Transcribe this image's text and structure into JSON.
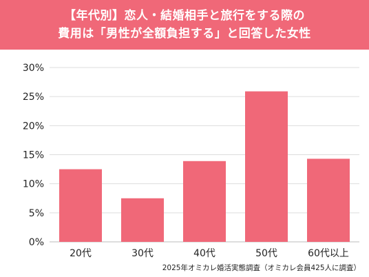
{
  "title": {
    "line1": "【年代別】恋人・結婚相手と旅行をする際の",
    "line2": "費用は「男性が全額負担する」と回答した女性"
  },
  "source_note": "2025年オミカレ婚活実態調査（オミカレ会員425人に調査）",
  "colors": {
    "header_bg": "#f06878",
    "bar": "#f06878",
    "grid": "#dddddd",
    "text": "#222222"
  },
  "chart_data": {
    "type": "bar",
    "title": "【年代別】恋人・結婚相手と旅行をする際の費用は「男性が全額負担する」と回答した女性",
    "xlabel": "",
    "ylabel": "",
    "categories": [
      "20代",
      "30代",
      "40代",
      "50代",
      "60代以上"
    ],
    "values": [
      12.5,
      7.5,
      13.9,
      25.9,
      14.3
    ],
    "unit": "%",
    "ylim": [
      0,
      30
    ],
    "yticks": [
      "0%",
      "5%",
      "10%",
      "15%",
      "20%",
      "25%",
      "30%"
    ],
    "grid": true,
    "legend": "none"
  }
}
